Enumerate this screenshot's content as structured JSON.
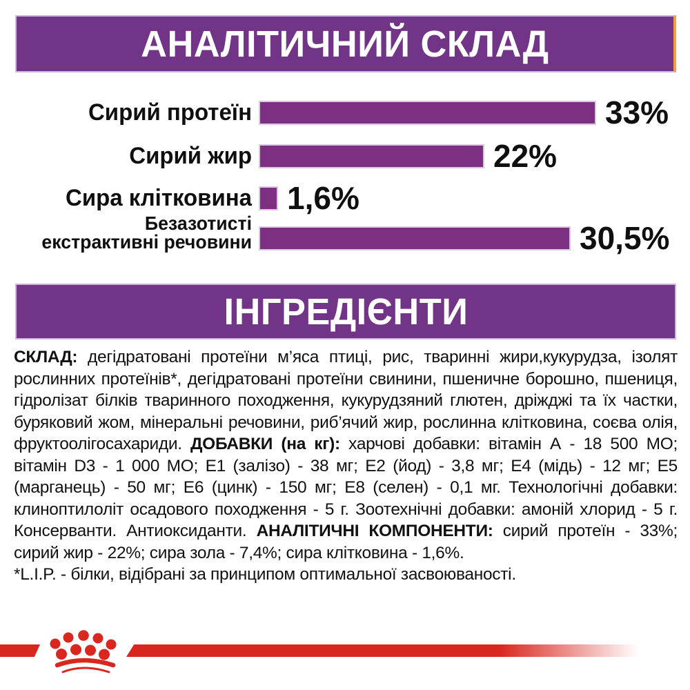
{
  "header_banner": {
    "label": "АНАЛІТИЧНИЙ СКЛАД",
    "bg_color": "#723486",
    "accent_edge_color": "#efa03d"
  },
  "ingredients_banner": {
    "label": "ІНГРЕДІЄНТИ",
    "bg_color": "#723486"
  },
  "chart_data": {
    "type": "bar",
    "orientation": "horizontal",
    "title": "АНАЛІТИЧНИЙ СКЛАД",
    "unit": "%",
    "categories": [
      "Сирий протеїн",
      "Сирий жир",
      "Сира клітковина",
      "Безазотисті екстрактивні речовини"
    ],
    "categories_display": [
      [
        "Сирий протеїн"
      ],
      [
        "Сирий жир"
      ],
      [
        "Сира клітковина"
      ],
      [
        "Безазотисті",
        "екстрактивні речовини"
      ]
    ],
    "values": [
      33,
      22,
      1.6,
      30.5
    ],
    "value_labels": [
      "33%",
      "22%",
      "1,6%",
      "30,5%"
    ],
    "bar_color": "#7b3082",
    "bar_outline_color": "#dcc8e2",
    "xlim": [
      0,
      35
    ],
    "grid": false,
    "legend": false
  },
  "composition": {
    "segments": [
      {
        "bold": true,
        "text": "СКЛАД:"
      },
      {
        "bold": false,
        "text": " дегідратовані протеїни м’яса птиці, рис, тваринні жири,кукурудза, ізолят рослинних протеїнів*, дегідратовані протеїни свинини, пшеничне борошно, пшениця, гідролізат білків тваринного походження, кукурудзяний глютен, дріжджі та їх частки, буряковий жом, мінеральні речовини, риб’ячий жир, рослинна клітковина, соєва олія, фруктоолігосахариди.  "
      },
      {
        "bold": true,
        "text": "ДОБАВКИ (на кг):"
      },
      {
        "bold": false,
        "text": " харчові добавки: вітамін А - 18 500 МО; вітамін D3 - 1 000 МО; Е1 (залізо) - 38 мг; Е2 (йод) - 3,8 мг; Е4 (мідь) - 12 мг; Е5 (марганець) - 50 мг; Е6 (цинк) - 150 мг; Е8 (селен) - 0,1 мг.  Технологічні добавки: клиноптилоліт осадового походження - 5 г. Зоотехнічні добавки: амоній хлорид - 5 г. Консерванти. Антиоксиданти.  "
      },
      {
        "bold": true,
        "text": "АНАЛІТИЧНІ КОМПОНЕНТИ:"
      },
      {
        "bold": false,
        "text": " сирий протеїн - 33%; сирий жир - 22%; сира зола - 7,4%; сира клітковина - 1,6%."
      }
    ],
    "footnote": "*L.I.P. - білки, відібрані за принципом оптимальної засвоюваності."
  },
  "footer": {
    "brand_mark": "royal-canin-crown",
    "stripe_color": "#d9261e"
  }
}
